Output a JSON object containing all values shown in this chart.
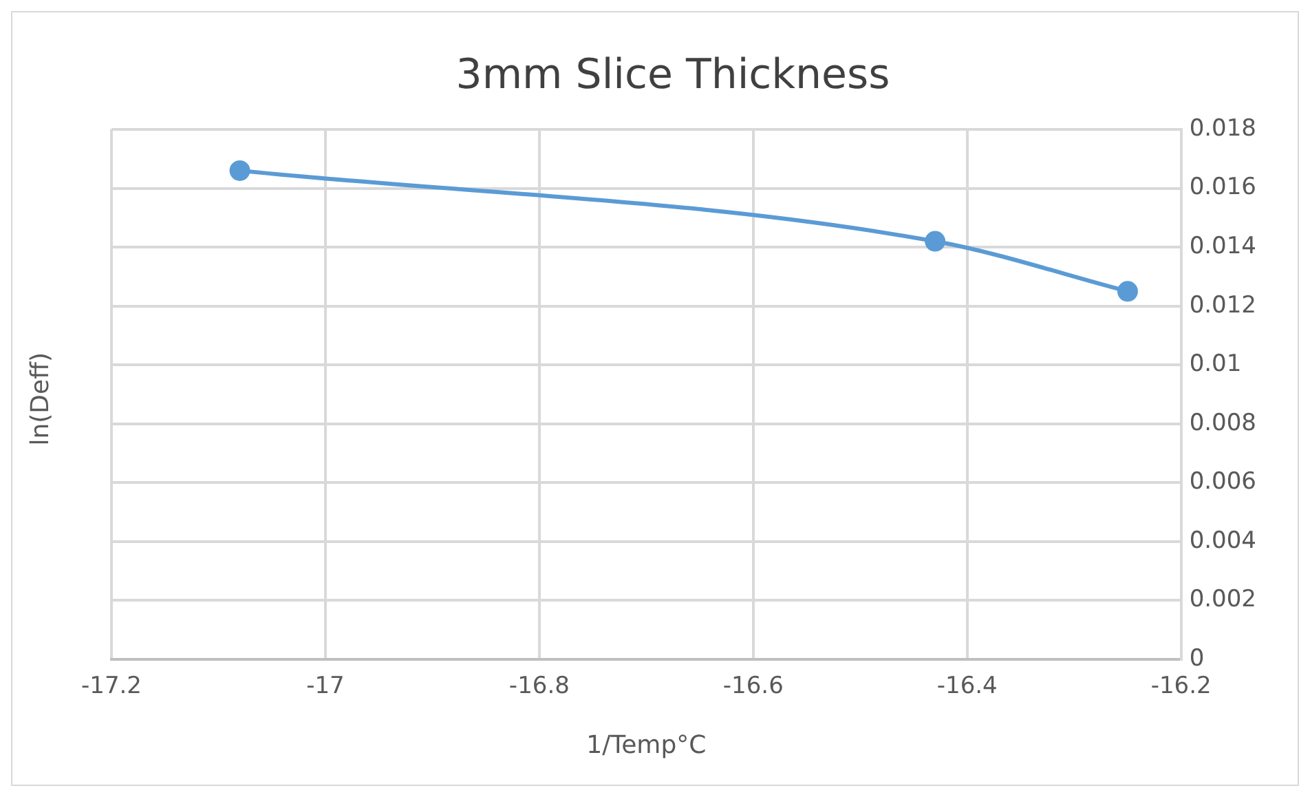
{
  "chart_data": {
    "type": "line",
    "title": "3mm Slice Thickness",
    "xlabel": "1/Temp°C",
    "ylabel": "ln(Deff)",
    "x": [
      -17.08,
      -16.43,
      -16.25
    ],
    "series": [
      {
        "color": "#5b9bd5",
        "values": [
          0.0166,
          0.0142,
          0.0125
        ]
      }
    ],
    "xlim": [
      -17.2,
      -16.2
    ],
    "xticks": [
      -17.2,
      -17,
      -16.8,
      -16.6,
      -16.4,
      -16.2
    ],
    "ylim": [
      0,
      0.018
    ],
    "yticks": [
      0,
      0.002,
      0.004,
      0.006,
      0.008,
      0.01,
      0.012,
      0.014,
      0.016,
      0.018
    ],
    "grid": true,
    "marker": "circle",
    "line_style": "solid",
    "legend": false
  }
}
